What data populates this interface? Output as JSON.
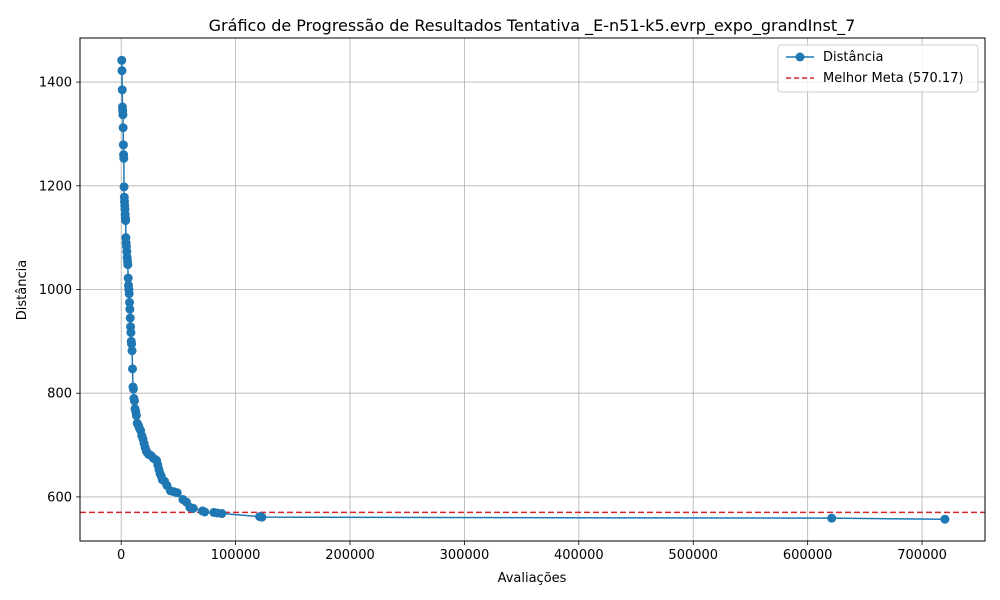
{
  "chart_data": {
    "type": "line",
    "title": "Gráfico de Progressão de Resultados Tentativa _E-n51-k5.evrp_expo_grandInst_7",
    "xlabel": "Avaliações",
    "ylabel": "Distância",
    "xlim": [
      -36000,
      755000
    ],
    "ylim": [
      515,
      1485
    ],
    "xticks": [
      0,
      100000,
      200000,
      300000,
      400000,
      500000,
      600000,
      700000
    ],
    "xtick_labels": [
      "0",
      "100000",
      "200000",
      "300000",
      "400000",
      "500000",
      "600000",
      "700000"
    ],
    "yticks": [
      600,
      800,
      1000,
      1200,
      1400
    ],
    "ytick_labels": [
      "600",
      "800",
      "1000",
      "1200",
      "1400"
    ],
    "grid": true,
    "legend_position": "top-right",
    "colors": {
      "series": "#1f77b4",
      "target": "#d62728",
      "grid": "#b0b0b0"
    },
    "series": [
      {
        "name": "Distância",
        "style": "line-marker",
        "x": [
          500,
          700,
          900,
          1100,
          1300,
          1500,
          1700,
          1900,
          2100,
          2300,
          2500,
          2700,
          2900,
          3100,
          3300,
          3500,
          3700,
          3900,
          4100,
          4300,
          4600,
          4900,
          5200,
          5500,
          5800,
          6100,
          6400,
          6700,
          7000,
          7300,
          7600,
          7900,
          8200,
          8500,
          8800,
          9100,
          9500,
          9900,
          10300,
          10700,
          11100,
          11600,
          12100,
          12700,
          13300,
          14000,
          15000,
          16000,
          17000,
          18000,
          19000,
          20000,
          21000,
          22000,
          23000,
          24000,
          26000,
          28000,
          30000,
          31000,
          32000,
          33000,
          34000,
          35000,
          36000,
          38000,
          40000,
          43000,
          46000,
          49000,
          54000,
          57000,
          60000,
          63000,
          71000,
          73000,
          81000,
          84000,
          88000,
          121000,
          123000,
          621000,
          720000
        ],
        "y": [
          1442,
          1422,
          1385,
          1352,
          1345,
          1337,
          1312,
          1279,
          1260,
          1253,
          1198,
          1178,
          1170,
          1162,
          1155,
          1145,
          1138,
          1133,
          1100,
          1090,
          1083,
          1073,
          1062,
          1055,
          1048,
          1022,
          1008,
          1000,
          992,
          975,
          962,
          945,
          928,
          917,
          900,
          895,
          882,
          847,
          812,
          808,
          790,
          785,
          770,
          765,
          757,
          742,
          738,
          732,
          728,
          718,
          712,
          703,
          695,
          688,
          685,
          682,
          680,
          675,
          672,
          670,
          662,
          653,
          645,
          640,
          633,
          630,
          622,
          612,
          610,
          608,
          595,
          590,
          580,
          578,
          573,
          571,
          570,
          569,
          568,
          562,
          561,
          559,
          557
        ]
      },
      {
        "name": "Melhor Meta (570.17)",
        "style": "hline-dashed",
        "y": 570.17
      }
    ]
  }
}
